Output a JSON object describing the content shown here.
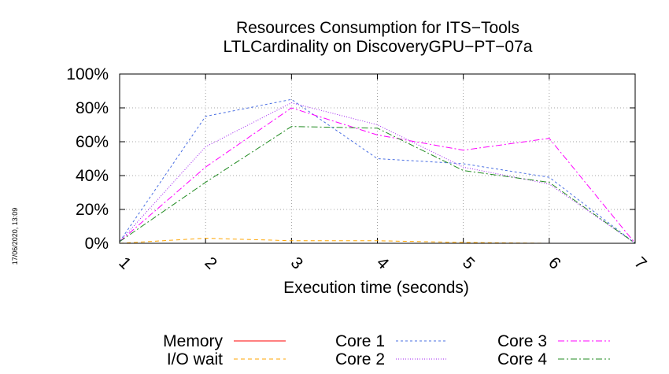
{
  "chart_data": {
    "type": "line",
    "title": "Resources Consumption for ITS−Tools",
    "subtitle": "LTLCardinality on DiscoveryGPU−PT−07a",
    "xlabel": "Execution time (seconds)",
    "ylabel": "",
    "x": [
      1,
      2,
      3,
      4,
      5,
      6,
      7
    ],
    "xlim": [
      1,
      7
    ],
    "ylim": [
      0,
      100
    ],
    "x_ticks": [
      "1",
      "2",
      "3",
      "4",
      "5",
      "6",
      "7"
    ],
    "y_ticks": [
      "0%",
      "20%",
      "40%",
      "60%",
      "80%",
      "100%"
    ],
    "y_tick_values": [
      0,
      20,
      40,
      60,
      80,
      100
    ],
    "grid": true,
    "legend_position": "bottom",
    "series": [
      {
        "name": "Memory",
        "color": "#ff0000",
        "dash": "solid",
        "values": [
          0,
          0,
          0,
          0,
          0,
          0,
          0
        ]
      },
      {
        "name": "I/O wait",
        "color": "#ffa500",
        "dash": "dashed",
        "values": [
          0,
          3,
          1.5,
          1.5,
          0.5,
          0,
          0
        ]
      },
      {
        "name": "Core 1",
        "color": "#4a6fe3",
        "dash": "dotted-dash",
        "values": [
          1,
          75,
          85,
          50,
          47,
          39,
          0
        ]
      },
      {
        "name": "Core 2",
        "color": "#a020f0",
        "dash": "dotted",
        "values": [
          1,
          57,
          83,
          70,
          45,
          35,
          0
        ]
      },
      {
        "name": "Core 3",
        "color": "#ff00ff",
        "dash": "dash-dot",
        "values": [
          1,
          45,
          80,
          64,
          55,
          62,
          0
        ]
      },
      {
        "name": "Core 4",
        "color": "#228b22",
        "dash": "dash-dot",
        "values": [
          1,
          36,
          69,
          68,
          43,
          36,
          0
        ]
      }
    ]
  },
  "timestamp": "17/06/2020, 13:09"
}
